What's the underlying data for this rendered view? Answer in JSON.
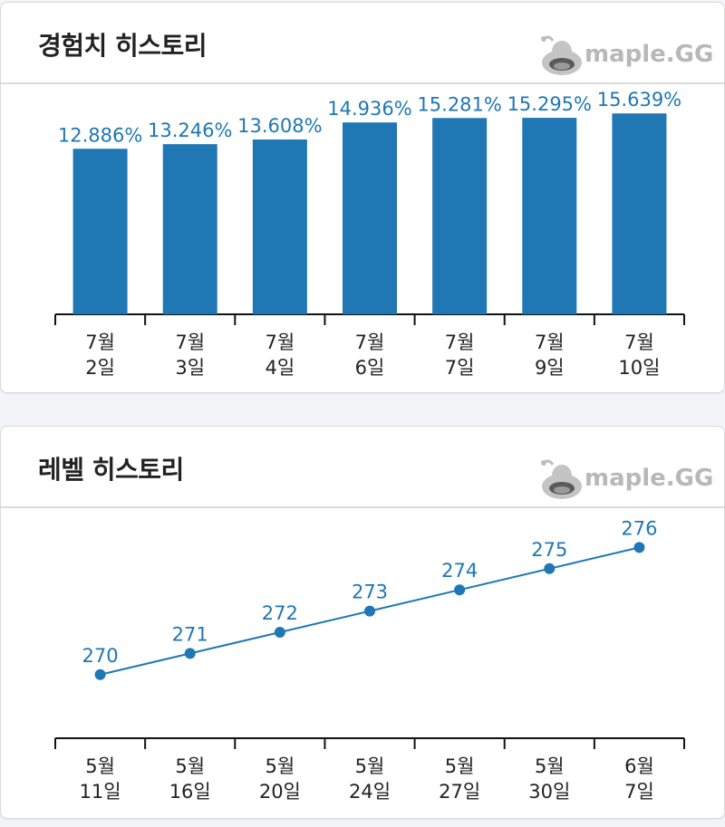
{
  "cards": {
    "exp": {
      "title": "경험치 히스토리",
      "brand": "maple.GG"
    },
    "level": {
      "title": "레벨 히스토리",
      "brand": "maple.GG"
    }
  },
  "colors": {
    "accent": "#1f77b4",
    "axis": "#111111",
    "tick_text": "#222222"
  },
  "chart_data": [
    {
      "type": "bar",
      "categories": [
        [
          "7월",
          "2일"
        ],
        [
          "7월",
          "3일"
        ],
        [
          "7월",
          "4일"
        ],
        [
          "7월",
          "6일"
        ],
        [
          "7월",
          "7일"
        ],
        [
          "7월",
          "9일"
        ],
        [
          "7월",
          "10일"
        ]
      ],
      "values": [
        12.886,
        13.246,
        13.608,
        14.936,
        15.281,
        15.295,
        15.639
      ],
      "value_labels": [
        "12.886%",
        "13.246%",
        "13.608%",
        "14.936%",
        "15.281%",
        "15.295%",
        "15.639%"
      ],
      "title": "경험치 히스토리",
      "ylim": [
        0,
        16.5
      ]
    },
    {
      "type": "line",
      "categories": [
        [
          "5월",
          "11일"
        ],
        [
          "5월",
          "16일"
        ],
        [
          "5월",
          "20일"
        ],
        [
          "5월",
          "24일"
        ],
        [
          "5월",
          "27일"
        ],
        [
          "5월",
          "30일"
        ],
        [
          "6월",
          "7일"
        ]
      ],
      "values": [
        270,
        271,
        272,
        273,
        274,
        275,
        276
      ],
      "value_labels": [
        "270",
        "271",
        "272",
        "273",
        "274",
        "275",
        "276"
      ],
      "title": "레벨 히스토리",
      "ylim": [
        267,
        277
      ]
    }
  ]
}
